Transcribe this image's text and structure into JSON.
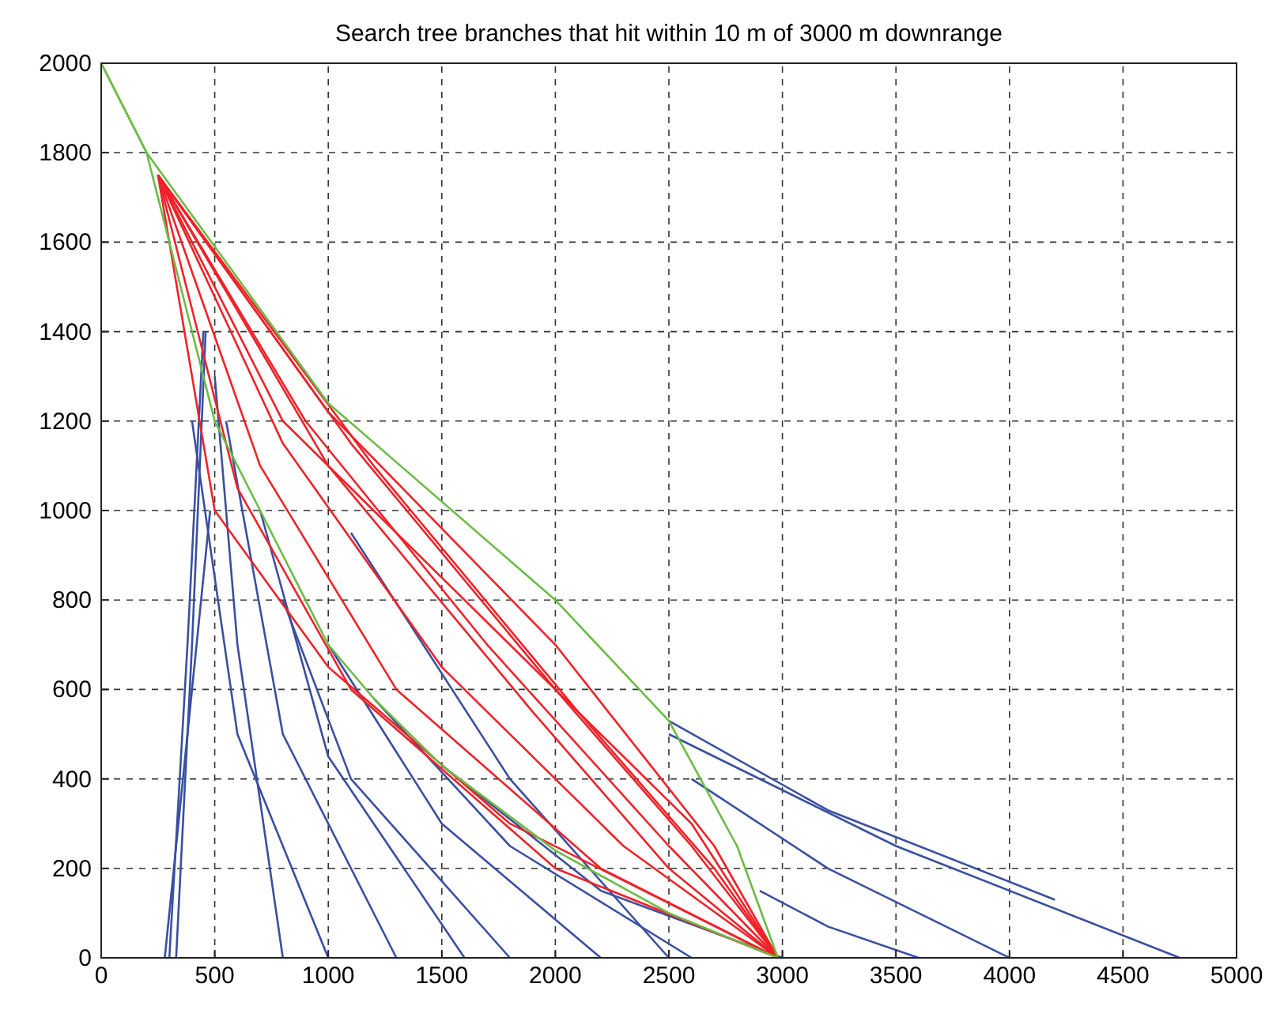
{
  "chart_data": {
    "type": "line",
    "title": "Search tree branches that hit within 10 m of 3000 m downrange",
    "xlim": [
      0,
      5000
    ],
    "ylim": [
      0,
      2000
    ],
    "xticks": [
      0,
      500,
      1000,
      1500,
      2000,
      2500,
      3000,
      3500,
      4000,
      4500,
      5000
    ],
    "yticks": [
      0,
      200,
      400,
      600,
      800,
      1000,
      1200,
      1400,
      1600,
      1800,
      2000
    ],
    "grid": true,
    "line_style": "solid",
    "marker": "none",
    "series": [
      {
        "color": "#3a4fa0",
        "x": [
          450,
          380,
          300
        ],
        "values": [
          1400,
          700,
          0
        ]
      },
      {
        "color": "#3a4fa0",
        "x": [
          460,
          400,
          330
        ],
        "values": [
          1400,
          700,
          0
        ]
      },
      {
        "color": "#3a4fa0",
        "x": [
          480,
          380,
          280
        ],
        "values": [
          1000,
          500,
          0
        ]
      },
      {
        "color": "#3a4fa0",
        "x": [
          500,
          600,
          800
        ],
        "values": [
          1300,
          700,
          0
        ]
      },
      {
        "color": "#3a4fa0",
        "x": [
          400,
          600,
          1000
        ],
        "values": [
          1200,
          500,
          0
        ]
      },
      {
        "color": "#3a4fa0",
        "x": [
          550,
          800,
          1300
        ],
        "values": [
          1200,
          500,
          0
        ]
      },
      {
        "color": "#3a4fa0",
        "x": [
          700,
          1000,
          1600
        ],
        "values": [
          1000,
          450,
          0
        ]
      },
      {
        "color": "#3a4fa0",
        "x": [
          800,
          1100,
          1800
        ],
        "values": [
          800,
          400,
          0
        ]
      },
      {
        "color": "#3a4fa0",
        "x": [
          1000,
          1500,
          2200
        ],
        "values": [
          700,
          300,
          0
        ]
      },
      {
        "color": "#3a4fa0",
        "x": [
          1100,
          1800,
          2500
        ],
        "values": [
          950,
          400,
          0
        ]
      },
      {
        "color": "#3a4fa0",
        "x": [
          1200,
          1800,
          2600
        ],
        "values": [
          580,
          250,
          0
        ]
      },
      {
        "color": "#3a4fa0",
        "x": [
          1500,
          2200,
          3000
        ],
        "values": [
          430,
          150,
          0
        ]
      },
      {
        "color": "#3a4fa0",
        "x": [
          2500,
          3200,
          4200
        ],
        "values": [
          530,
          330,
          130
        ]
      },
      {
        "color": "#3a4fa0",
        "x": [
          2500,
          3500,
          4750
        ],
        "values": [
          500,
          250,
          0
        ]
      },
      {
        "color": "#3a4fa0",
        "x": [
          2600,
          3200,
          4000
        ],
        "values": [
          400,
          200,
          0
        ]
      },
      {
        "color": "#3a4fa0",
        "x": [
          2900,
          3200,
          3600
        ],
        "values": [
          150,
          70,
          0
        ]
      },
      {
        "color": "#ee2329",
        "x": [
          250,
          1000,
          2000,
          2700,
          2980
        ],
        "values": [
          1750,
          1220,
          700,
          250,
          0
        ]
      },
      {
        "color": "#ee2329",
        "x": [
          250,
          900,
          1700,
          2500,
          2980
        ],
        "values": [
          1750,
          1200,
          700,
          250,
          0
        ]
      },
      {
        "color": "#ee2329",
        "x": [
          250,
          800,
          1500,
          2300,
          2980
        ],
        "values": [
          1750,
          1150,
          650,
          250,
          0
        ]
      },
      {
        "color": "#ee2329",
        "x": [
          250,
          700,
          1300,
          2200,
          2980
        ],
        "values": [
          1750,
          1100,
          600,
          200,
          0
        ]
      },
      {
        "color": "#ee2329",
        "x": [
          250,
          600,
          1100,
          2000,
          2980
        ],
        "values": [
          1750,
          1050,
          600,
          200,
          0
        ]
      },
      {
        "color": "#ee2329",
        "x": [
          250,
          1100,
          2000,
          2600,
          2980
        ],
        "values": [
          1750,
          1150,
          600,
          250,
          0
        ]
      },
      {
        "color": "#ee2329",
        "x": [
          250,
          1200,
          2100,
          2700,
          2980
        ],
        "values": [
          1750,
          1100,
          550,
          200,
          0
        ]
      },
      {
        "color": "#ee2329",
        "x": [
          250,
          800,
          1700,
          2600,
          2980
        ],
        "values": [
          1750,
          1200,
          750,
          300,
          0
        ]
      },
      {
        "color": "#ee2329",
        "x": [
          250,
          1000,
          1900,
          2500,
          2980
        ],
        "values": [
          1750,
          1100,
          550,
          200,
          0
        ]
      },
      {
        "color": "#ee2329",
        "x": [
          250,
          500,
          1000,
          1800,
          2980
        ],
        "values": [
          1750,
          1000,
          650,
          300,
          0
        ]
      },
      {
        "color": "#6cbb45",
        "x": [
          0,
          200,
          1000,
          2000,
          2500,
          2800,
          2980
        ],
        "values": [
          2000,
          1800,
          1240,
          800,
          530,
          250,
          0
        ]
      },
      {
        "color": "#6cbb45",
        "x": [
          0,
          200,
          350,
          500,
          700,
          1000,
          1200,
          1500,
          2000,
          2500,
          2980
        ],
        "values": [
          2000,
          1800,
          1500,
          1200,
          1000,
          700,
          580,
          430,
          240,
          100,
          0
        ]
      }
    ]
  }
}
